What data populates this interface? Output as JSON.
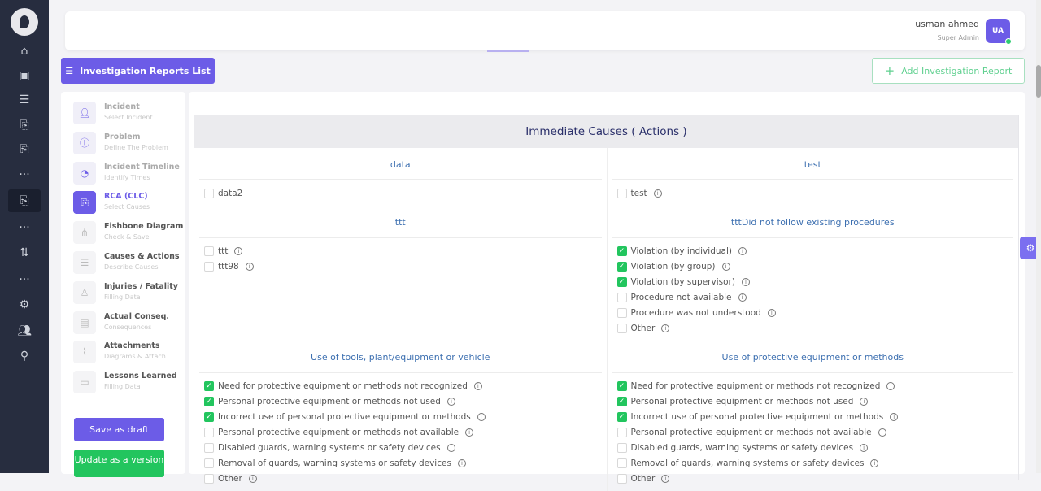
{
  "header": {
    "user_name": "usman ahmed",
    "user_role": "Super Admin",
    "avatar_initials": "UA"
  },
  "toolbar": {
    "list_label": "Investigation Reports List",
    "add_label": "Add Investigation Report"
  },
  "steps": [
    {
      "title": "Incident",
      "subtitle": "Select Incident",
      "icon": "person-icon",
      "state": "done"
    },
    {
      "title": "Problem",
      "subtitle": "Define The Problem",
      "icon": "alert-icon",
      "state": "done"
    },
    {
      "title": "Incident Timeline",
      "subtitle": "Identify Times",
      "icon": "timer-icon",
      "state": "done"
    },
    {
      "title": "RCA (CLC)",
      "subtitle": "Select Causes",
      "icon": "clipboard-search-icon",
      "state": "active"
    },
    {
      "title": "Fishbone Diagram",
      "subtitle": "Check & Save",
      "icon": "diagram-icon",
      "state": "pending"
    },
    {
      "title": "Causes & Actions",
      "subtitle": "Describe Causes",
      "icon": "document-icon",
      "state": "pending"
    },
    {
      "title": "Injuries / Fatality",
      "subtitle": "Filling Data",
      "icon": "injury-icon",
      "state": "pending"
    },
    {
      "title": "Actual Conseq.",
      "subtitle": "Consequences",
      "icon": "clipboard-icon",
      "state": "pending"
    },
    {
      "title": "Attachments",
      "subtitle": "Diagrams & Attach.",
      "icon": "paperclip-icon",
      "state": "pending"
    },
    {
      "title": "Lessons Learned",
      "subtitle": "Filling Data",
      "icon": "book-icon",
      "state": "pending"
    }
  ],
  "actions": {
    "save_draft": "Save as draft",
    "update_version": "Update as a version"
  },
  "main": {
    "title": "Immediate Causes ( Actions )",
    "rows": [
      [
        {
          "title": "data",
          "items": [
            {
              "label": "data2",
              "checked": false,
              "info": false
            }
          ]
        },
        {
          "title": "test",
          "items": [
            {
              "label": "test",
              "checked": false,
              "info": true
            }
          ]
        }
      ],
      [
        {
          "title": "ttt",
          "items": [
            {
              "label": "ttt",
              "checked": false,
              "info": true
            },
            {
              "label": "ttt98",
              "checked": false,
              "info": true
            }
          ]
        },
        {
          "title": "tttDid not follow existing procedures",
          "items": [
            {
              "label": "Violation (by individual)",
              "checked": true,
              "info": true
            },
            {
              "label": "Violation (by group)",
              "checked": true,
              "info": true
            },
            {
              "label": "Violation (by supervisor)",
              "checked": true,
              "info": true
            },
            {
              "label": "Procedure not available",
              "checked": false,
              "info": true
            },
            {
              "label": "Procedure was not understood",
              "checked": false,
              "info": true
            },
            {
              "label": "Other",
              "checked": false,
              "info": true
            }
          ]
        }
      ],
      [
        {
          "title": "Use of tools, plant/equipment or vehicle",
          "items": [
            {
              "label": "Need for protective equipment or methods not recognized",
              "checked": true,
              "info": true
            },
            {
              "label": "Personal protective equipment or methods not used",
              "checked": true,
              "info": true
            },
            {
              "label": "Incorrect use of personal protective equipment or methods",
              "checked": true,
              "info": true
            },
            {
              "label": "Personal protective equipment or methods not available",
              "checked": false,
              "info": true
            },
            {
              "label": "Disabled guards, warning systems or safety devices",
              "checked": false,
              "info": true
            },
            {
              "label": "Removal of guards, warning systems or safety devices",
              "checked": false,
              "info": true
            },
            {
              "label": "Other",
              "checked": false,
              "info": true
            }
          ]
        },
        {
          "title": "Use of protective equipment or methods",
          "items": [
            {
              "label": "Need for protective equipment or methods not recognized",
              "checked": true,
              "info": true
            },
            {
              "label": "Personal protective equipment or methods not used",
              "checked": true,
              "info": true
            },
            {
              "label": "Incorrect use of personal protective equipment or methods",
              "checked": true,
              "info": true
            },
            {
              "label": "Personal protective equipment or methods not available",
              "checked": false,
              "info": true
            },
            {
              "label": "Disabled guards, warning systems or safety devices",
              "checked": false,
              "info": true
            },
            {
              "label": "Removal of guards, warning systems or safety devices",
              "checked": false,
              "info": true
            },
            {
              "label": "Other",
              "checked": false,
              "info": true
            }
          ]
        }
      ]
    ]
  },
  "colors": {
    "accent": "#6c5ce7",
    "success": "#22c55e",
    "sidebar": "#272d3f"
  }
}
